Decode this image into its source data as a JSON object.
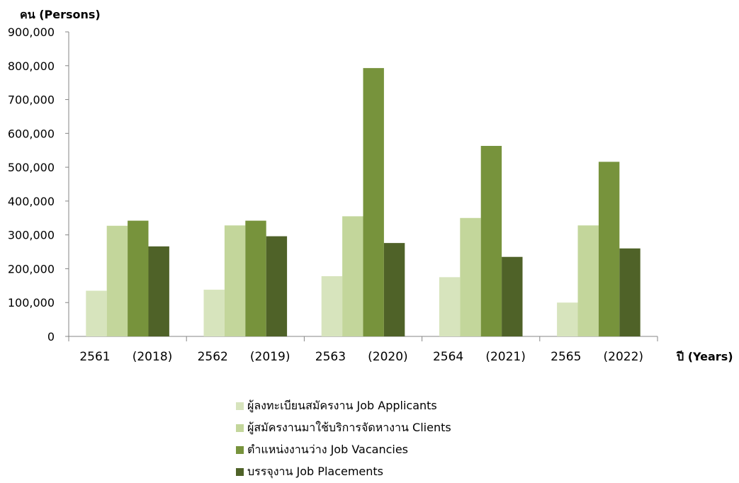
{
  "chart_data": {
    "type": "bar",
    "ylabel": "คน (Persons)",
    "xlabel": "ปี (Years)",
    "ylim": [
      0,
      900000
    ],
    "yticks": [
      "0",
      "100,000",
      "200,000",
      "300,000",
      "400,000",
      "500,000",
      "600,000",
      "700,000",
      "800,000",
      "900,000"
    ],
    "categories": [
      {
        "be": "2561",
        "ce": "(2018)"
      },
      {
        "be": "2562",
        "ce": "(2019)"
      },
      {
        "be": "2563",
        "ce": "(2020)"
      },
      {
        "be": "2564",
        "ce": "(2021)"
      },
      {
        "be": "2565",
        "ce": "(2022)"
      }
    ],
    "series": [
      {
        "name": "ผู้ลงทะเบียนสมัครงาน Job Applicants",
        "color": "#d7e4bd",
        "values": [
          135000,
          138000,
          178000,
          175000,
          100000
        ]
      },
      {
        "name": "ผู้สมัครงานมาใช้บริการจัดหางาน Clients",
        "color": "#c3d69b",
        "values": [
          327000,
          328000,
          355000,
          350000,
          328000
        ]
      },
      {
        "name": "ตำแหน่งงานว่าง Job Vacancies",
        "color": "#77933c",
        "values": [
          342000,
          342000,
          793000,
          563000,
          516000
        ]
      },
      {
        "name": "บรรจุงาน Job Placements",
        "color": "#4f6228",
        "values": [
          266000,
          296000,
          276000,
          235000,
          260000
        ]
      }
    ],
    "grid": false,
    "legend_position": "bottom"
  }
}
